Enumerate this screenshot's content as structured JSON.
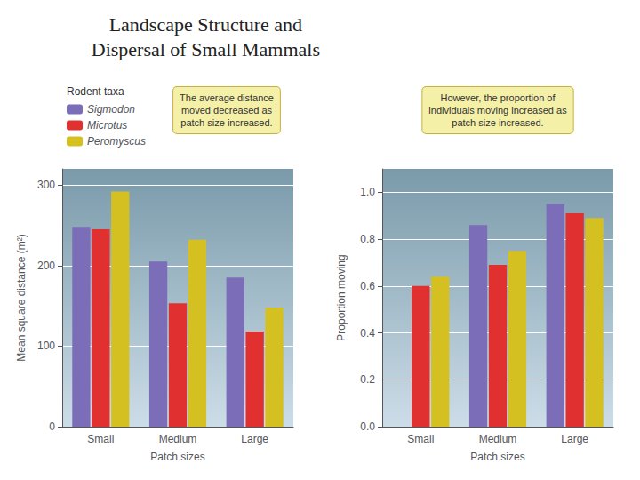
{
  "chart_data": [
    {
      "type": "bar",
      "title": "Landscape Structure and\nDispersal of Small Mammals",
      "categories": [
        "Small",
        "Medium",
        "Large"
      ],
      "series": [
        {
          "name": "Sigmodon",
          "color": "#7b6db8",
          "values": [
            248,
            205,
            185
          ]
        },
        {
          "name": "Microtus",
          "color": "#e03030",
          "values": [
            245,
            153,
            118
          ]
        },
        {
          "name": "Peromyscus",
          "color": "#d4c020",
          "values": [
            292,
            232,
            148
          ]
        }
      ],
      "xlabel": "Patch sizes",
      "ylabel": "Mean square distance (m²)",
      "ylim": [
        0,
        320
      ],
      "yticks": [
        0,
        100,
        200,
        300
      ],
      "grid": true,
      "legend": "upper left",
      "legend_title": "Rodent taxa",
      "annotation": "The average distance\nmoved decreased as\npatch size increased."
    },
    {
      "type": "bar",
      "categories": [
        "Small",
        "Medium",
        "Large"
      ],
      "series": [
        {
          "name": "Sigmodon",
          "color": "#7b6db8",
          "values": [
            0.0,
            0.86,
            0.95
          ]
        },
        {
          "name": "Microtus",
          "color": "#e03030",
          "values": [
            0.6,
            0.69,
            0.91
          ]
        },
        {
          "name": "Peromyscus",
          "color": "#d4c020",
          "values": [
            0.64,
            0.75,
            0.89
          ]
        }
      ],
      "xlabel": "Patch sizes",
      "ylabel": "Proportion moving",
      "ylim": [
        0.0,
        1.1
      ],
      "yticks": [
        {
          "value": 0.0,
          "label": "0.0"
        },
        0.2,
        0.4,
        0.6,
        0.8,
        {
          "value": 1.0,
          "label": "1.0"
        }
      ],
      "grid": true,
      "annotation": "However, the proportion of\nindividuals moving increased as\npatch size increased."
    }
  ]
}
